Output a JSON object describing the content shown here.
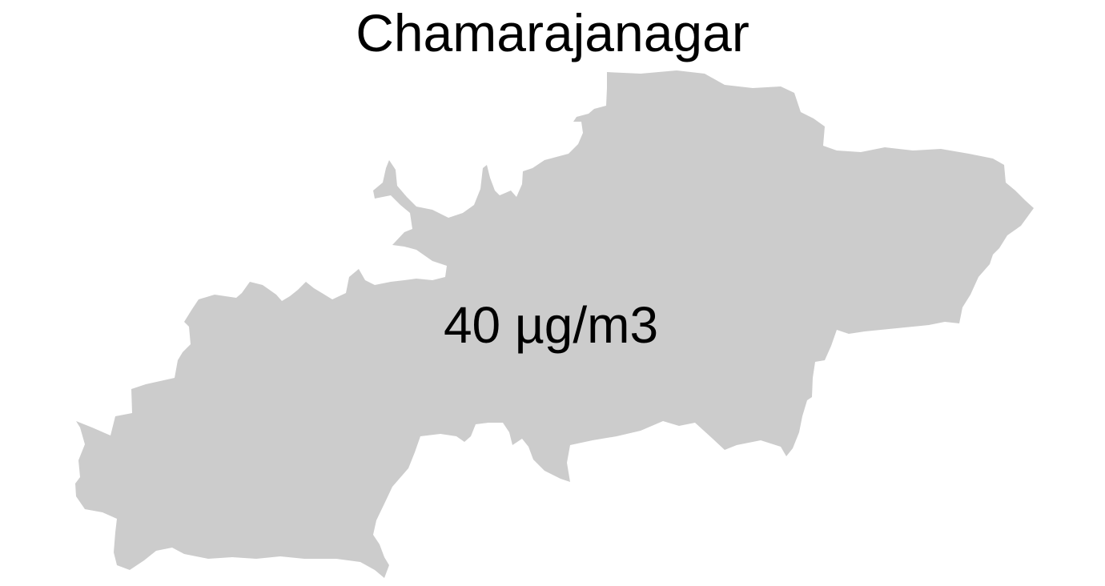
{
  "map": {
    "title": "Chamarajanagar",
    "region_fill": "#cccccc",
    "value_label": "40 µg/m3"
  }
}
